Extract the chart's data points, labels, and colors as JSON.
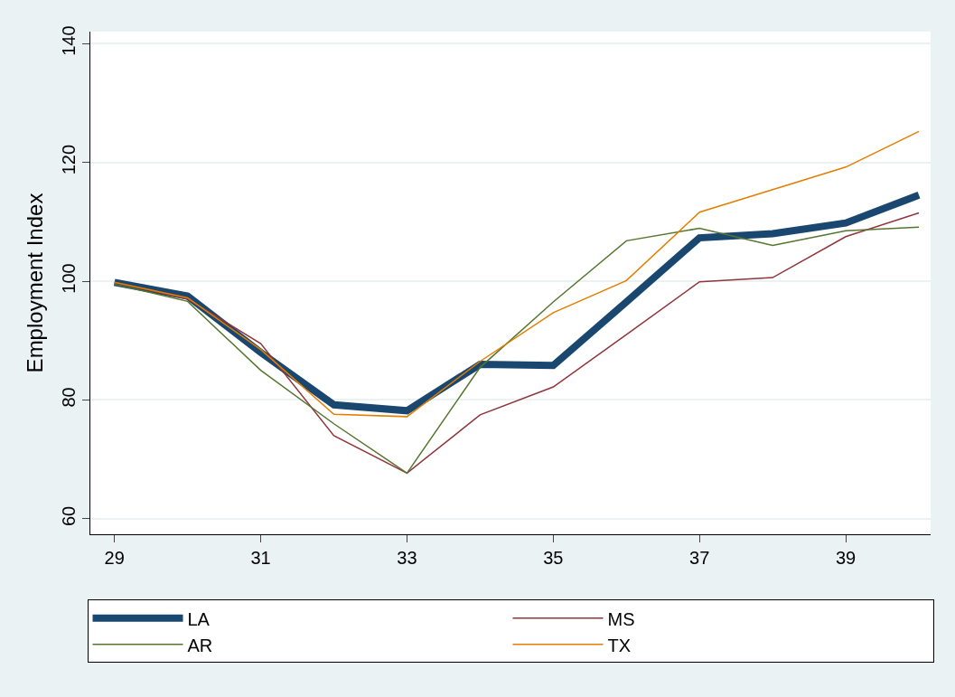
{
  "chart_data": {
    "type": "line",
    "ylabel": "Employment Index",
    "x": [
      29,
      30,
      31,
      32,
      33,
      34,
      35,
      36,
      37,
      38,
      39,
      40
    ],
    "series": [
      {
        "name": "LA",
        "color": "#1a476f",
        "values": [
          99.8,
          97.5,
          88,
          79.2,
          78.2,
          86,
          85.8,
          96.5,
          107.3,
          108,
          109.8,
          114.5
        ]
      },
      {
        "name": "MS",
        "color": "#90353b",
        "values": [
          99.8,
          97,
          89.5,
          74,
          67.7,
          77.5,
          82.2,
          91,
          99.9,
          100.6,
          107.5,
          111.5
        ]
      },
      {
        "name": "AR",
        "color": "#55752f",
        "values": [
          99.5,
          96.6,
          85,
          76,
          67.7,
          85.5,
          96.5,
          106.8,
          108.9,
          106,
          108.5,
          109.1
        ]
      },
      {
        "name": "TX",
        "color": "#e37e00",
        "values": [
          99.8,
          97.2,
          88.5,
          77.6,
          77.2,
          86.5,
          94.7,
          100.1,
          111.6,
          115.4,
          119.2,
          125.2
        ]
      }
    ],
    "xlim": [
      28.67,
      40.16
    ],
    "xticks": [
      29,
      31,
      33,
      35,
      37,
      39
    ],
    "ylim": [
      57.4,
      142
    ],
    "yticks": [
      60,
      80,
      100,
      120,
      140
    ],
    "grid": "y",
    "legend": "bottom",
    "marker": "none",
    "line_style": "solid"
  }
}
